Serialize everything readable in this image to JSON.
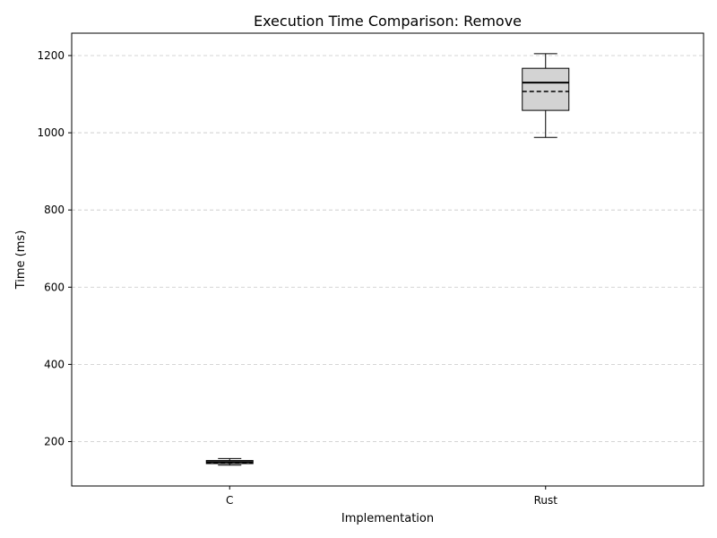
{
  "chart_data": {
    "type": "box",
    "title": "Execution Time Comparison: Remove",
    "xlabel": "Implementation",
    "ylabel": "Time (ms)",
    "categories": [
      "C",
      "Rust"
    ],
    "ylim": [
      85,
      1258
    ],
    "yticks": [
      200,
      400,
      600,
      800,
      1000,
      1200
    ],
    "grid": "y-dashed",
    "boxes": [
      {
        "category": "C",
        "whisker_low": 139,
        "q1": 143,
        "median": 147,
        "mean": 146,
        "q3": 151,
        "whisker_high": 156
      },
      {
        "category": "Rust",
        "whisker_low": 988,
        "q1": 1058,
        "median": 1130,
        "mean": 1107,
        "q3": 1167,
        "whisker_high": 1205
      }
    ],
    "box_fill": "#d3d3d3",
    "line_color": "#000000",
    "grid_color": "#c8c8c8"
  }
}
